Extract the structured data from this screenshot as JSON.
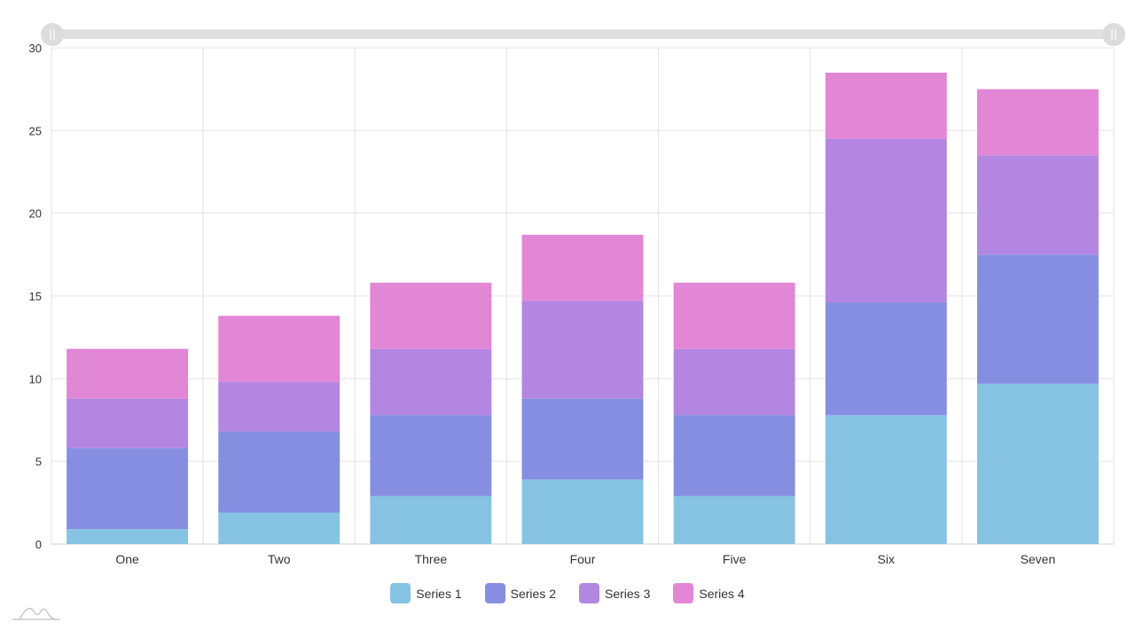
{
  "chart_data": {
    "type": "bar",
    "stacked": true,
    "categories": [
      "One",
      "Two",
      "Three",
      "Four",
      "Five",
      "Six",
      "Seven"
    ],
    "series": [
      {
        "name": "Series 1",
        "color": "#86c3e2",
        "values": [
          0.9,
          1.9,
          2.9,
          3.9,
          2.9,
          7.8,
          9.7
        ]
      },
      {
        "name": "Series 2",
        "color": "#868ee2",
        "values": [
          4.9,
          4.9,
          4.9,
          4.9,
          4.9,
          6.8,
          7.8
        ]
      },
      {
        "name": "Series 3",
        "color": "#b386e2",
        "values": [
          3,
          3,
          4,
          5.9,
          4,
          9.9,
          6
        ]
      },
      {
        "name": "Series 4",
        "color": "#e286d6",
        "values": [
          3,
          4,
          4,
          4,
          4,
          4,
          4
        ]
      }
    ],
    "ylim": [
      0,
      30
    ],
    "yticks": [
      "0",
      "5",
      "10",
      "15",
      "20",
      "25",
      "30"
    ],
    "grid": true,
    "legend_position": "bottom",
    "scrollbar": "top"
  }
}
